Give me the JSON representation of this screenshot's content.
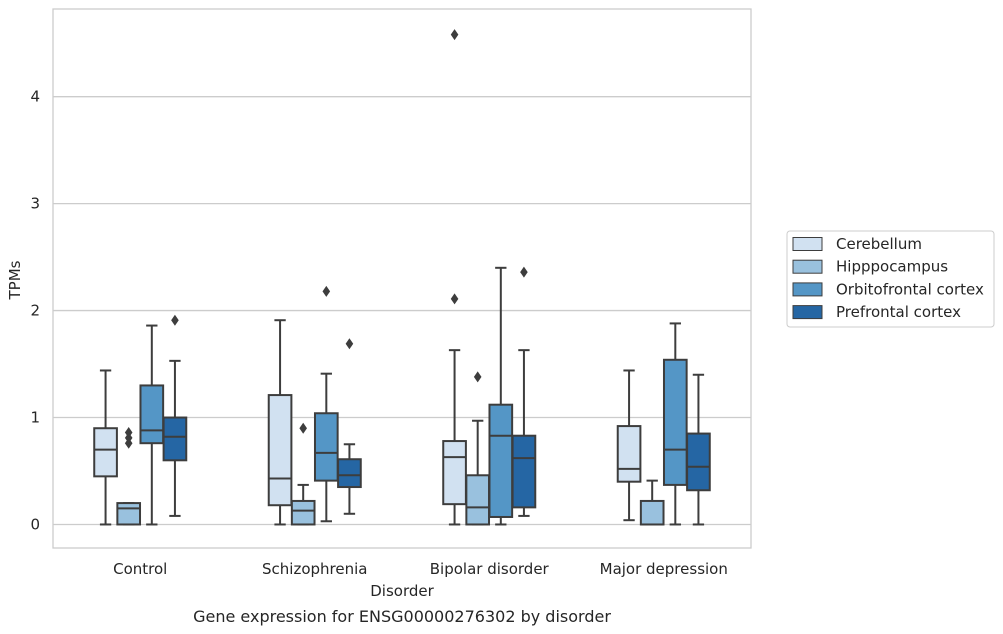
{
  "chart_data": {
    "type": "box",
    "xlabel": "Disorder",
    "ylabel": "TPMs",
    "caption": "Gene expression for ENSG00000276302 by disorder",
    "categories": [
      "Control",
      "Schizophrenia",
      "Bipolar disorder",
      "Major depression"
    ],
    "ylim": [
      -0.22,
      4.82
    ],
    "yticks": [
      0,
      1,
      2,
      3,
      4
    ],
    "grid": "horizontal",
    "legend_position": "right",
    "series": [
      {
        "name": "Cerebellum",
        "color": "#d1e1f1",
        "boxes": [
          {
            "whislo": 0.0,
            "q1": 0.45,
            "med": 0.7,
            "q3": 0.9,
            "whishi": 1.44,
            "fliers": []
          },
          {
            "whislo": 0.0,
            "q1": 0.18,
            "med": 0.43,
            "q3": 1.21,
            "whishi": 1.91,
            "fliers": []
          },
          {
            "whislo": 0.0,
            "q1": 0.19,
            "med": 0.63,
            "q3": 0.78,
            "whishi": 1.63,
            "fliers": [
              2.11,
              4.58
            ]
          },
          {
            "whislo": 0.04,
            "q1": 0.4,
            "med": 0.52,
            "q3": 0.92,
            "whishi": 1.44,
            "fliers": []
          }
        ]
      },
      {
        "name": "Hipppocampus",
        "color": "#99c1de",
        "boxes": [
          {
            "whislo": 0.0,
            "q1": 0.0,
            "med": 0.15,
            "q3": 0.2,
            "whishi": 0.2,
            "fliers": [
              0.76,
              0.81,
              0.86
            ]
          },
          {
            "whislo": 0.0,
            "q1": 0.0,
            "med": 0.13,
            "q3": 0.22,
            "whishi": 0.37,
            "fliers": [
              0.9
            ]
          },
          {
            "whislo": 0.0,
            "q1": 0.0,
            "med": 0.16,
            "q3": 0.46,
            "whishi": 0.97,
            "fliers": [
              1.38
            ]
          },
          {
            "whislo": 0.0,
            "q1": 0.0,
            "med": 0.0,
            "q3": 0.22,
            "whishi": 0.41,
            "fliers": []
          }
        ]
      },
      {
        "name": "Orbitofrontal cortex",
        "color": "#5496c6",
        "boxes": [
          {
            "whislo": 0.0,
            "q1": 0.76,
            "med": 0.88,
            "q3": 1.3,
            "whishi": 1.86,
            "fliers": []
          },
          {
            "whislo": 0.03,
            "q1": 0.41,
            "med": 0.67,
            "q3": 1.04,
            "whishi": 1.41,
            "fliers": [
              2.18
            ]
          },
          {
            "whislo": 0.0,
            "q1": 0.07,
            "med": 0.83,
            "q3": 1.12,
            "whishi": 2.4,
            "fliers": []
          },
          {
            "whislo": 0.0,
            "q1": 0.37,
            "med": 0.7,
            "q3": 1.54,
            "whishi": 1.88,
            "fliers": []
          }
        ]
      },
      {
        "name": "Prefrontal cortex",
        "color": "#2566a4",
        "boxes": [
          {
            "whislo": 0.08,
            "q1": 0.6,
            "med": 0.82,
            "q3": 1.0,
            "whishi": 1.53,
            "fliers": [
              1.91
            ]
          },
          {
            "whislo": 0.1,
            "q1": 0.35,
            "med": 0.46,
            "q3": 0.61,
            "whishi": 0.75,
            "fliers": [
              1.69
            ]
          },
          {
            "whislo": 0.08,
            "q1": 0.16,
            "med": 0.62,
            "q3": 0.83,
            "whishi": 1.63,
            "fliers": [
              2.36
            ]
          },
          {
            "whislo": 0.0,
            "q1": 0.32,
            "med": 0.54,
            "q3": 0.85,
            "whishi": 1.4,
            "fliers": []
          }
        ]
      }
    ]
  }
}
